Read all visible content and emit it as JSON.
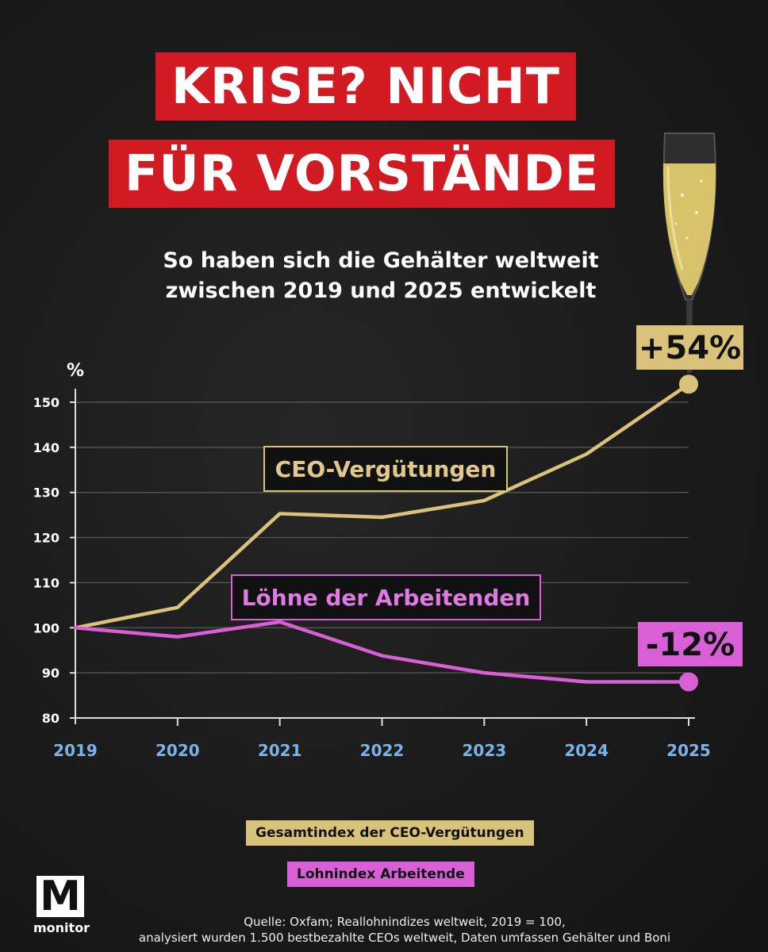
{
  "title": {
    "line1": "KRISE? NICHT",
    "line2": "FÜR VORSTÄNDE"
  },
  "subtitle": {
    "line1": "So haben sich die Gehälter weltweit",
    "line2": "zwischen 2019 und 2025 entwickelt"
  },
  "colors": {
    "background": "#1b1b1b",
    "title_bg": "#d21a22",
    "ceo": "#d9c27a",
    "workers": "#d85fd6",
    "year_labels": "#7ab3e8"
  },
  "chart_data": {
    "type": "line",
    "x": [
      "2019",
      "2020",
      "2021",
      "2022",
      "2023",
      "2024",
      "2025"
    ],
    "series": [
      {
        "name": "CEO-Vergütungen",
        "values": [
          100,
          104.5,
          125.3,
          124.5,
          128.2,
          138.5,
          154
        ]
      },
      {
        "name": "Löhne der Arbeitenden",
        "values": [
          100,
          98,
          101.3,
          93.8,
          90,
          88,
          88
        ]
      }
    ],
    "ylabel": "%",
    "ylim": [
      80,
      155
    ],
    "yticks": [
      "150",
      "140",
      "130",
      "120",
      "110",
      "100",
      "90",
      "80"
    ],
    "grid": true,
    "annotations": {
      "ceo_change": "+54%",
      "workers_change": "-12%"
    }
  },
  "legend": {
    "ceo": "Gesamtindex der CEO-Vergütungen",
    "workers": "Lohnindex Arbeitende"
  },
  "source": {
    "line1": "Quelle: Oxfam; Reallohnindizes weltweit, 2019 = 100,",
    "line2": "analysiert wurden 1.500 bestbezahlte CEOs weltweit, Daten umfassen Gehälter und Boni"
  },
  "logo": {
    "mark": "M",
    "word": "monitor"
  }
}
